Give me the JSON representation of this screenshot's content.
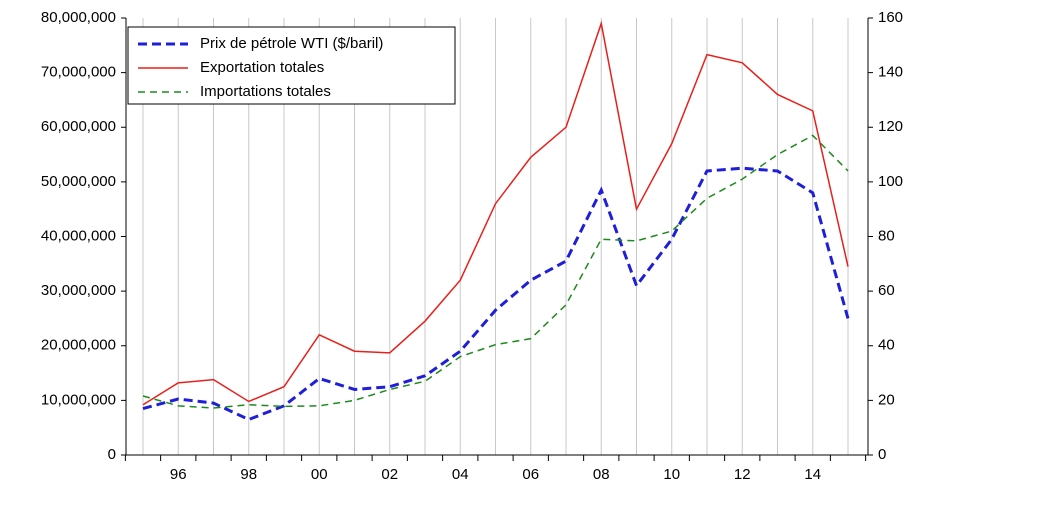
{
  "chart_data": {
    "type": "line",
    "categories": [
      null,
      "96",
      null,
      "98",
      null,
      "00",
      null,
      "02",
      null,
      "04",
      null,
      "06",
      null,
      "08",
      null,
      "10",
      null,
      "12",
      null,
      "14",
      null
    ],
    "series": [
      {
        "name": "Prix de pétrole WTI ($/baril)",
        "color": "#1f1fd8",
        "axis": "y2",
        "style": "dashed-thick",
        "values": [
          17,
          20.5,
          19,
          13,
          18,
          28,
          24,
          25,
          29,
          38,
          53,
          64,
          71,
          97,
          62,
          79,
          104,
          105,
          104,
          96,
          50
        ]
      },
      {
        "name": "Exportation totales",
        "color": "#e8201c",
        "style": "solid",
        "values": [
          9200000,
          13200000,
          13800000,
          9800000,
          12500000,
          22000000,
          19000000,
          18700000,
          24500000,
          32000000,
          46000000,
          54500000,
          60000000,
          79000000,
          45000000,
          57000000,
          73300000,
          71800000,
          66000000,
          63000000,
          34500000
        ]
      },
      {
        "name": "Importations totales",
        "color": "#1e8a1e",
        "style": "dashed",
        "values": [
          10800000,
          9000000,
          8600000,
          9200000,
          8900000,
          9000000,
          10000000,
          12000000,
          13500000,
          18000000,
          20200000,
          21300000,
          27500000,
          39500000,
          39200000,
          41000000,
          47000000,
          50500000,
          55000000,
          58500000,
          52000000
        ]
      }
    ],
    "ylim": [
      0,
      80000000
    ],
    "yticks": [
      0,
      {
        "value": 10000000,
        "label": "10,000,000"
      },
      {
        "value": 20000000,
        "label": "20,000,000"
      },
      {
        "value": 30000000,
        "label": "30,000,000"
      },
      {
        "value": 40000000,
        "label": "40,000,000"
      },
      {
        "value": 50000000,
        "label": "50,000,000"
      },
      {
        "value": 60000000,
        "label": "60,000,000"
      },
      {
        "value": 70000000,
        "label": "70,000,000"
      },
      {
        "value": 80000000,
        "label": "80,000,000"
      }
    ],
    "y2lim": [
      0,
      160
    ],
    "y2ticks": [
      0,
      20,
      40,
      60,
      80,
      100,
      120,
      140,
      160
    ],
    "grid": true,
    "legend": "upper left"
  }
}
